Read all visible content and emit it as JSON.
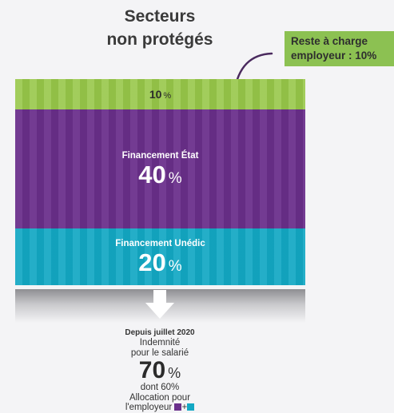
{
  "title": {
    "line1": "Secteurs",
    "line2": "non protégés"
  },
  "callout": {
    "line1": "Reste à charge",
    "line2": "employeur : 10%"
  },
  "segments": {
    "employer": {
      "value": "10",
      "unit": "%"
    },
    "state": {
      "label": "Financement État",
      "value": "40",
      "unit": "%"
    },
    "unedic": {
      "label": "Financement Unédic",
      "value": "20",
      "unit": "%"
    }
  },
  "result": {
    "since": "Depuis juillet 2020",
    "line1": "Indemnité",
    "line2": "pour le salarié",
    "value": "70",
    "unit": "%",
    "line3": "dont 60%",
    "line4": "Allocation pour",
    "line5": "l'employeur",
    "plus": "+"
  },
  "colors": {
    "green": "#97c749",
    "purple": "#6a2f8b",
    "teal": "#13a8c4",
    "callout": "#8cc152"
  }
}
